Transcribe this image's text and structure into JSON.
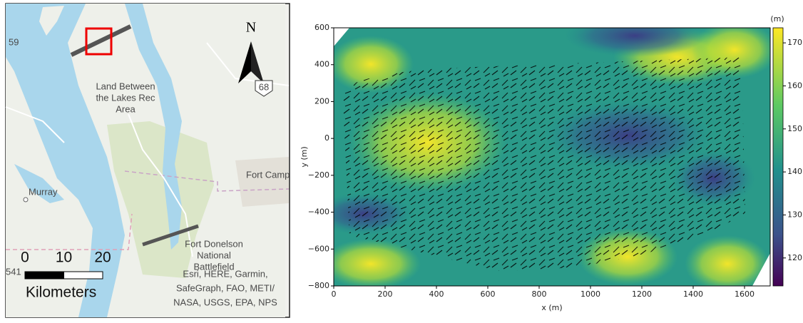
{
  "map": {
    "park_label": [
      "Land Between",
      "the Lakes Rec",
      "Area"
    ],
    "city_label": "Murray",
    "fort_campbell_label": "Fort Camp",
    "fort_donelson_label": [
      "Fort Donelson",
      "National",
      "Battlefield"
    ],
    "attribution": [
      "Esri, HERE, Garmin,",
      "SafeGraph, FAO, METI/",
      "NASA, USGS, EPA, NPS"
    ],
    "north": "N",
    "shields": [
      "59",
      "68",
      "541"
    ],
    "scale": {
      "ticks": [
        0,
        10,
        20
      ],
      "unit": "Kilometers"
    }
  },
  "chart_data": {
    "type": "quiver",
    "xlabel": "x (m)",
    "ylabel": "y (m)",
    "xlim": [
      0,
      1700
    ],
    "xticks": [
      0,
      200,
      400,
      600,
      800,
      1000,
      1200,
      1400,
      1600
    ],
    "ylim": [
      -800,
      600
    ],
    "yticks": [
      {
        "value": -800,
        "label": "−800"
      },
      {
        "value": -600,
        "label": "−600"
      },
      {
        "value": -400,
        "label": "−400"
      },
      {
        "value": -200,
        "label": "−200"
      },
      0,
      200,
      400,
      600
    ],
    "colorbar": {
      "label": "(m)",
      "lim": [
        113.5,
        173.5
      ],
      "ticks": [
        120,
        130,
        140,
        150,
        160,
        170
      ]
    }
  }
}
